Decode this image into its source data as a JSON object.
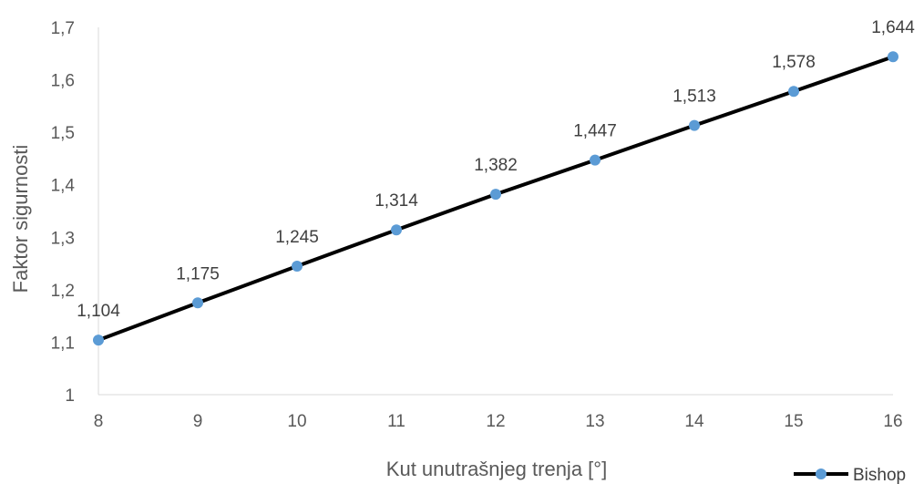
{
  "chart_data": {
    "type": "line",
    "title": "",
    "xlabel": "Kut unutrašnjeg trenja [°]",
    "ylabel": "Faktor sigurnosti",
    "x": [
      8,
      9,
      10,
      11,
      12,
      13,
      14,
      15,
      16
    ],
    "x_tick_labels": [
      "8",
      "9",
      "10",
      "11",
      "12",
      "13",
      "14",
      "15",
      "16"
    ],
    "xlim": [
      8,
      16
    ],
    "ylim": [
      1,
      1.7
    ],
    "y_ticks": [
      1,
      1.1,
      1.2,
      1.3,
      1.4,
      1.5,
      1.6,
      1.7
    ],
    "y_tick_labels": [
      "1",
      "1,1",
      "1,2",
      "1,3",
      "1,4",
      "1,5",
      "1,6",
      "1,7"
    ],
    "grid": false,
    "legend_position": "bottom-right",
    "series": [
      {
        "name": "Bishop",
        "values": [
          1.104,
          1.175,
          1.245,
          1.314,
          1.382,
          1.447,
          1.513,
          1.578,
          1.644
        ],
        "data_labels": [
          "1,104",
          "1,175",
          "1,245",
          "1,314",
          "1,382",
          "1,447",
          "1,513",
          "1,578",
          "1,644"
        ],
        "line_color": "#000000",
        "marker_color": "#5B9BD5"
      }
    ]
  }
}
